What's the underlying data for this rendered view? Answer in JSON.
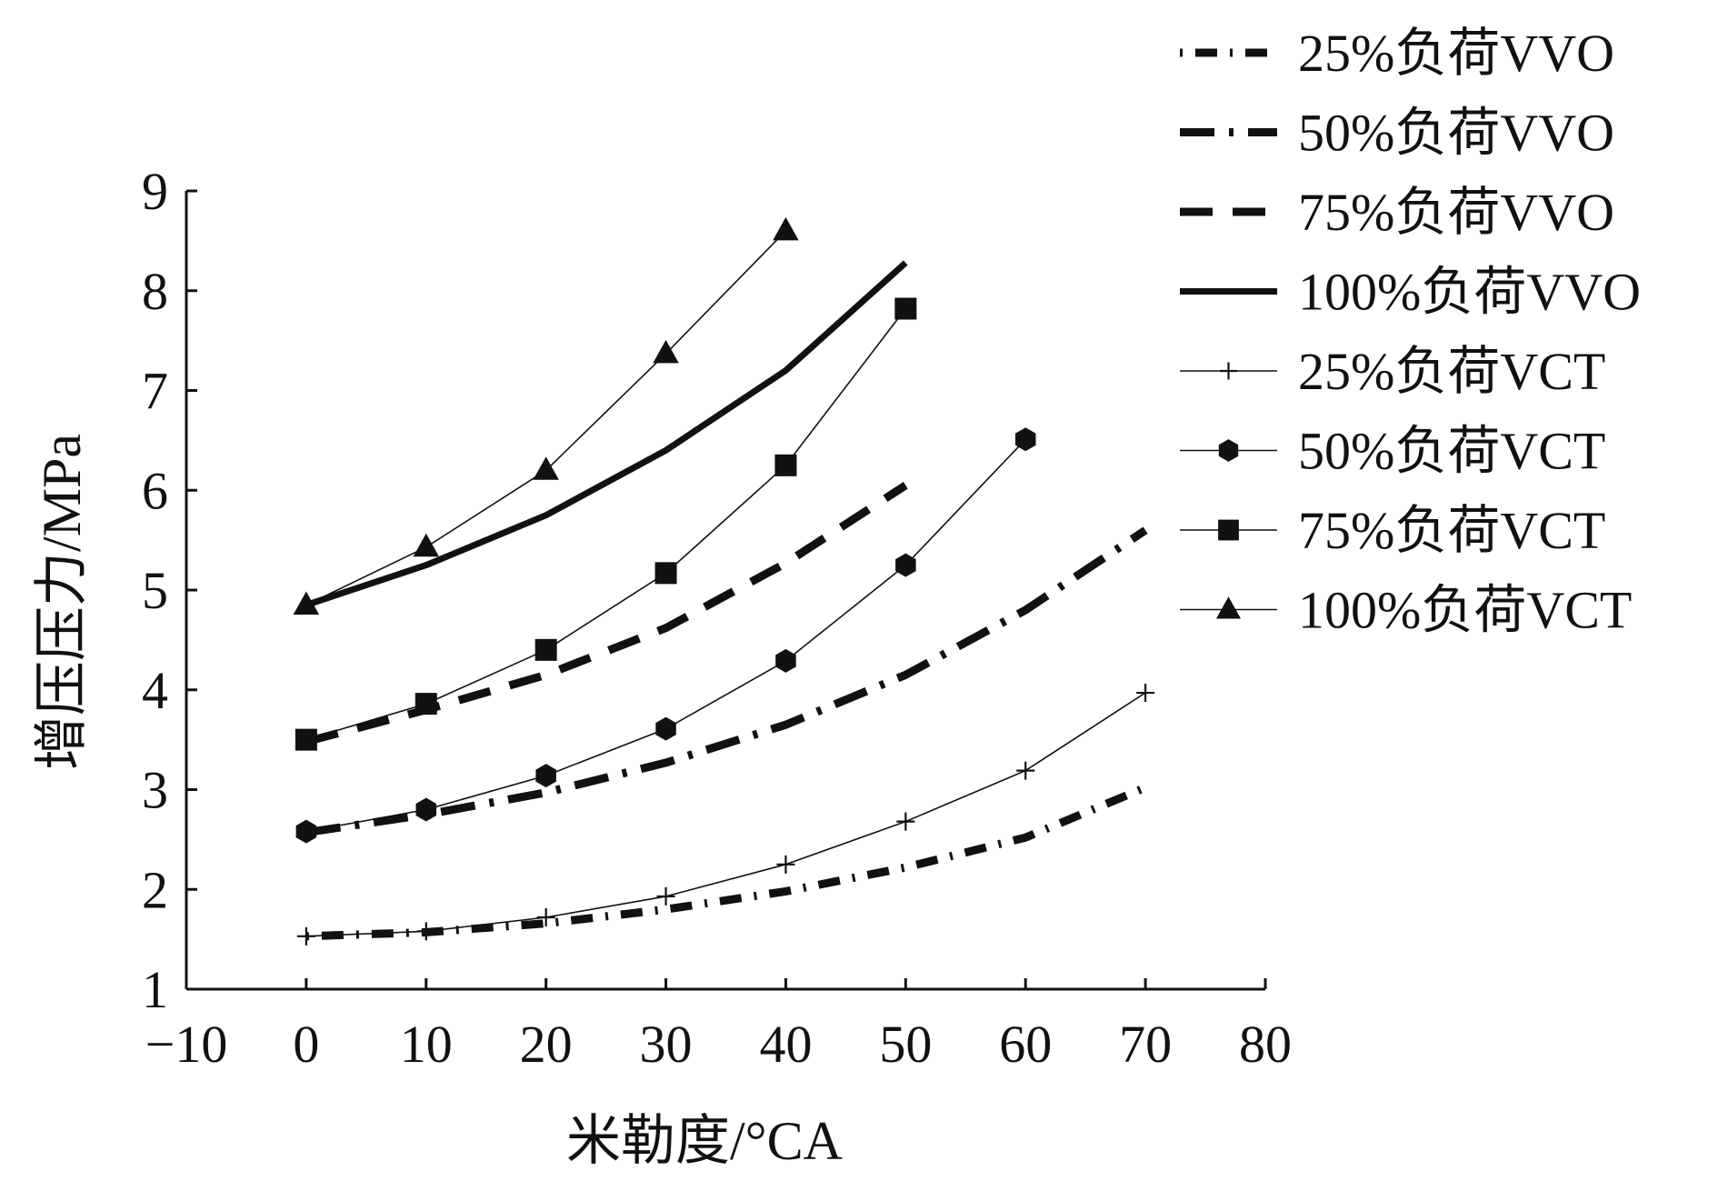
{
  "chart_data": {
    "type": "line",
    "xlabel": "米勒度/°CA",
    "ylabel": "增压压力/MPa",
    "xlim": [
      -10,
      80
    ],
    "ylim": [
      1,
      9
    ],
    "xticks": [
      "−10",
      "0",
      "10",
      "20",
      "30",
      "40",
      "50",
      "60",
      "70",
      "80"
    ],
    "yticks": [
      "1",
      "2",
      "3",
      "4",
      "5",
      "6",
      "7",
      "8",
      "9"
    ],
    "grid": false,
    "legend_position": "top-right",
    "series": [
      {
        "name": "25%负荷VVO",
        "style": "dot-dash-dot",
        "x": [
          0,
          10,
          20,
          30,
          40,
          50,
          60,
          70
        ],
        "y": [
          1.53,
          1.57,
          1.66,
          1.8,
          1.98,
          2.22,
          2.52,
          3.02
        ]
      },
      {
        "name": "50%负荷VVO",
        "style": "dash-dot",
        "x": [
          0,
          10,
          20,
          30,
          40,
          50,
          60,
          70
        ],
        "y": [
          2.57,
          2.75,
          2.97,
          3.27,
          3.65,
          4.15,
          4.8,
          5.6
        ]
      },
      {
        "name": "75%负荷VVO",
        "style": "dash",
        "x": [
          0,
          10,
          20,
          30,
          40,
          50
        ],
        "y": [
          3.48,
          3.8,
          4.15,
          4.62,
          5.27,
          6.05
        ]
      },
      {
        "name": "100%负荷VVO",
        "style": "solid",
        "x": [
          0,
          10,
          20,
          30,
          40,
          50
        ],
        "y": [
          4.85,
          5.25,
          5.75,
          6.4,
          7.2,
          8.28
        ]
      },
      {
        "name": "25%负荷VCT",
        "marker": "plus",
        "x": [
          0,
          10,
          20,
          30,
          40,
          50,
          60,
          70
        ],
        "y": [
          1.53,
          1.58,
          1.72,
          1.93,
          2.25,
          2.68,
          3.19,
          3.97
        ]
      },
      {
        "name": "50%负荷VCT",
        "marker": "hexagon",
        "x": [
          0,
          10,
          20,
          30,
          40,
          50,
          60
        ],
        "y": [
          2.58,
          2.8,
          3.14,
          3.61,
          4.29,
          5.25,
          6.51
        ]
      },
      {
        "name": "75%负荷VCT",
        "marker": "square",
        "x": [
          0,
          10,
          20,
          30,
          40,
          50
        ],
        "y": [
          3.5,
          3.86,
          4.4,
          5.17,
          6.25,
          7.82
        ]
      },
      {
        "name": "100%负荷VCT",
        "marker": "triangle",
        "x": [
          0,
          10,
          20,
          30,
          40
        ],
        "y": [
          4.85,
          5.43,
          6.2,
          7.37,
          8.6
        ]
      }
    ]
  }
}
